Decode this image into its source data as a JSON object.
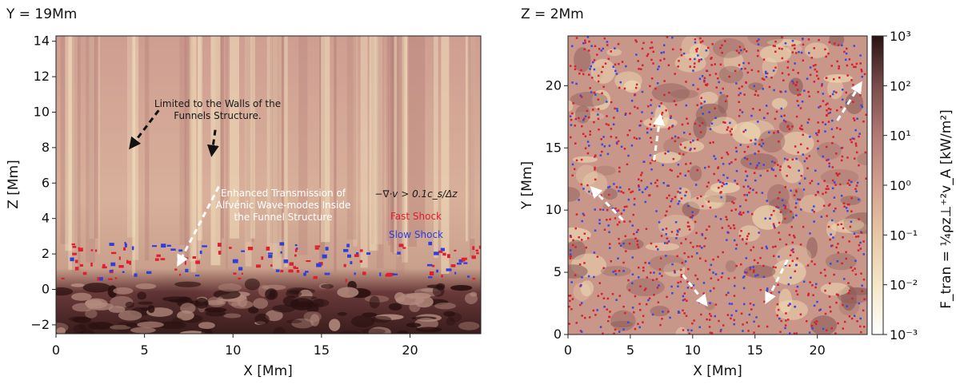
{
  "chart_data": [
    {
      "type": "heatmap",
      "title": "Y = 19Mm",
      "xlabel": "X [Mm]",
      "ylabel": "Z [Mm]",
      "xlim": [
        0,
        24
      ],
      "ylim": [
        -2.5,
        14.3
      ],
      "x_ticks": [
        0,
        5,
        10,
        15,
        20
      ],
      "y_ticks": [
        -2,
        0,
        2,
        4,
        6,
        8,
        10,
        12,
        14
      ],
      "grid": false,
      "legend_position": "center-right",
      "legend": {
        "criterion": "−∇·v > 0.1c_s/Δz",
        "entries": [
          {
            "label": "Fast Shock",
            "color": "#e01e2e"
          },
          {
            "label": "Slow Shock",
            "color": "#2e3fe0"
          }
        ]
      },
      "annotations": [
        {
          "text_lines": [
            "Limited to the Walls of the",
            "Funnels Structure."
          ],
          "color": "#1a1a1a"
        },
        {
          "text_lines": [
            "Enhanced Transmission of",
            "Alfvénic Wave-modes Inside",
            "the Funnel Structure"
          ],
          "color": "#ffffff"
        }
      ],
      "arrows": [
        {
          "from": [
            5.8,
            10.1
          ],
          "to": [
            4.2,
            8.0
          ],
          "color": "#111111"
        },
        {
          "from": [
            9.0,
            9.0
          ],
          "to": [
            8.8,
            7.6
          ],
          "color": "#111111"
        },
        {
          "from": [
            9.2,
            5.8
          ],
          "to": [
            6.9,
            1.4
          ],
          "color": "#ffffff"
        }
      ]
    },
    {
      "type": "heatmap",
      "title": "Z = 2Mm",
      "xlabel": "X [Mm]",
      "ylabel": "Y [Mm]",
      "xlim": [
        0,
        24
      ],
      "ylim": [
        0,
        24
      ],
      "x_ticks": [
        0,
        5,
        10,
        15,
        20
      ],
      "y_ticks": [
        0,
        5,
        10,
        15,
        20
      ],
      "grid": false,
      "arrows": [
        {
          "from": [
            6.9,
            14.0
          ],
          "to": [
            7.4,
            17.6
          ],
          "color": "#ffffff"
        },
        {
          "from": [
            4.4,
            9.2
          ],
          "to": [
            1.9,
            11.8
          ],
          "color": "#ffffff"
        },
        {
          "from": [
            9.2,
            4.8
          ],
          "to": [
            11.1,
            2.4
          ],
          "color": "#ffffff"
        },
        {
          "from": [
            17.6,
            6.0
          ],
          "to": [
            15.9,
            2.6
          ],
          "color": "#ffffff"
        },
        {
          "from": [
            21.6,
            17.2
          ],
          "to": [
            23.5,
            20.2
          ],
          "color": "#ffffff"
        }
      ],
      "colorbar": {
        "label": "F_tran = ¼ρz⊥⁺²v_A [kW/m²]",
        "scale": "log",
        "range": [
          0.001,
          1000
        ],
        "tick_labels": [
          "10⁻³",
          "10⁻²",
          "10⁻¹",
          "10⁰",
          "10¹",
          "10²",
          "10³"
        ],
        "colors": [
          "#ffffff",
          "#f4e8c8",
          "#e8c8a4",
          "#d2a090",
          "#b47c76",
          "#7a4e4c",
          "#2a1212"
        ]
      }
    }
  ]
}
